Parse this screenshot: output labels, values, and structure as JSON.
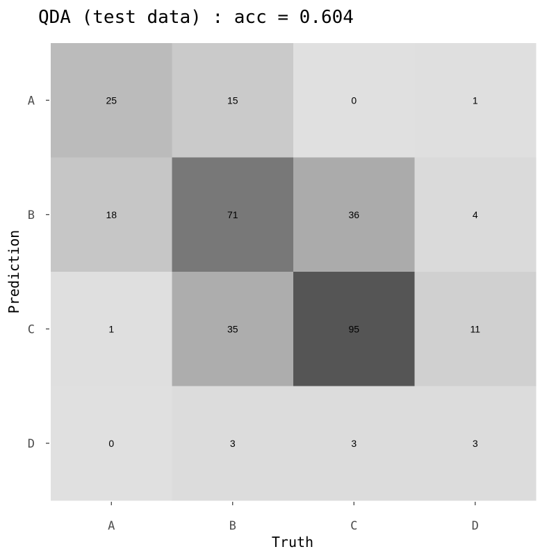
{
  "chart_data": {
    "type": "heatmap",
    "title": "QDA (test data) : acc = 0.604",
    "xlabel": "Truth",
    "ylabel": "Prediction",
    "x_categories": [
      "A",
      "B",
      "C",
      "D"
    ],
    "y_categories": [
      "A",
      "B",
      "C",
      "D"
    ],
    "values": [
      [
        25,
        15,
        0,
        1
      ],
      [
        18,
        71,
        36,
        4
      ],
      [
        1,
        35,
        95,
        11
      ],
      [
        0,
        3,
        3,
        3
      ]
    ],
    "color_low": "#e0e0e0",
    "color_high": "#555555",
    "grid": false,
    "legend": "none"
  }
}
